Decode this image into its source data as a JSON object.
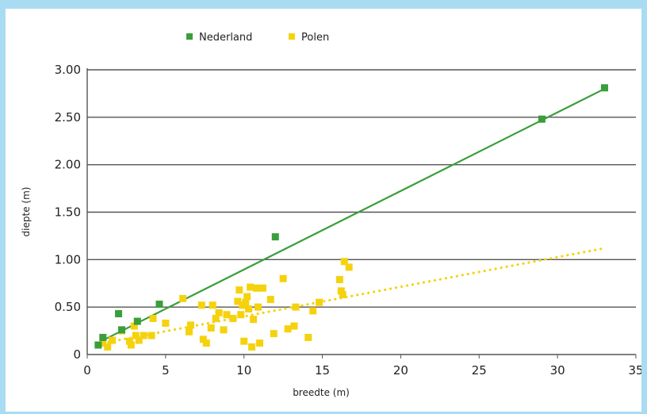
{
  "chart_data": {
    "type": "scatter",
    "title": "",
    "xlabel": "breedte (m)",
    "ylabel": "diepte (m)",
    "xlim": [
      0,
      35
    ],
    "ylim": [
      0,
      3.0
    ],
    "x_ticks": [
      "0",
      "5",
      "10",
      "15",
      "20",
      "25",
      "30",
      "35"
    ],
    "y_ticks": [
      "0",
      "0.50",
      "1.00",
      "1.50",
      "2.00",
      "2.50",
      "3.00"
    ],
    "grid": "horizontal",
    "legend_position": "top",
    "series": [
      {
        "name": "Nederland",
        "color": "#3a9e3a",
        "marker": "square",
        "trendline": "solid",
        "trend": [
          [
            1.0,
            0.15
          ],
          [
            33.0,
            2.8
          ]
        ],
        "points": [
          [
            0.7,
            0.1
          ],
          [
            1.0,
            0.18
          ],
          [
            2.0,
            0.43
          ],
          [
            2.2,
            0.26
          ],
          [
            3.2,
            0.35
          ],
          [
            4.6,
            0.53
          ],
          [
            12.0,
            1.24
          ],
          [
            29.0,
            2.48
          ],
          [
            33.0,
            2.81
          ]
        ]
      },
      {
        "name": "Polen",
        "color": "#f5d20e",
        "marker": "square",
        "trendline": "dotted",
        "trend": [
          [
            1.0,
            0.12
          ],
          [
            33.0,
            1.12
          ]
        ],
        "points": [
          [
            1.0,
            0.12
          ],
          [
            1.3,
            0.08
          ],
          [
            1.6,
            0.15
          ],
          [
            2.2,
            0.25
          ],
          [
            2.7,
            0.14
          ],
          [
            2.8,
            0.1
          ],
          [
            3.0,
            0.3
          ],
          [
            3.1,
            0.2
          ],
          [
            3.3,
            0.15
          ],
          [
            3.6,
            0.2
          ],
          [
            4.1,
            0.2
          ],
          [
            4.2,
            0.38
          ],
          [
            5.0,
            0.33
          ],
          [
            6.1,
            0.59
          ],
          [
            6.5,
            0.24
          ],
          [
            6.6,
            0.31
          ],
          [
            7.3,
            0.52
          ],
          [
            7.4,
            0.16
          ],
          [
            7.6,
            0.12
          ],
          [
            7.9,
            0.28
          ],
          [
            8.0,
            0.52
          ],
          [
            8.2,
            0.38
          ],
          [
            8.4,
            0.44
          ],
          [
            8.7,
            0.26
          ],
          [
            8.9,
            0.42
          ],
          [
            9.3,
            0.38
          ],
          [
            9.6,
            0.56
          ],
          [
            9.7,
            0.68
          ],
          [
            9.8,
            0.42
          ],
          [
            9.9,
            0.52
          ],
          [
            10.0,
            0.14
          ],
          [
            10.1,
            0.55
          ],
          [
            10.2,
            0.61
          ],
          [
            10.3,
            0.48
          ],
          [
            10.4,
            0.71
          ],
          [
            10.5,
            0.08
          ],
          [
            10.6,
            0.37
          ],
          [
            10.8,
            0.7
          ],
          [
            10.9,
            0.5
          ],
          [
            11.0,
            0.12
          ],
          [
            11.2,
            0.7
          ],
          [
            11.7,
            0.58
          ],
          [
            11.9,
            0.22
          ],
          [
            12.5,
            0.8
          ],
          [
            12.8,
            0.27
          ],
          [
            13.2,
            0.3
          ],
          [
            13.3,
            0.5
          ],
          [
            14.1,
            0.18
          ],
          [
            14.4,
            0.46
          ],
          [
            14.8,
            0.55
          ],
          [
            16.1,
            0.79
          ],
          [
            16.2,
            0.67
          ],
          [
            16.3,
            0.63
          ],
          [
            16.4,
            0.98
          ],
          [
            16.7,
            0.92
          ]
        ]
      }
    ]
  }
}
